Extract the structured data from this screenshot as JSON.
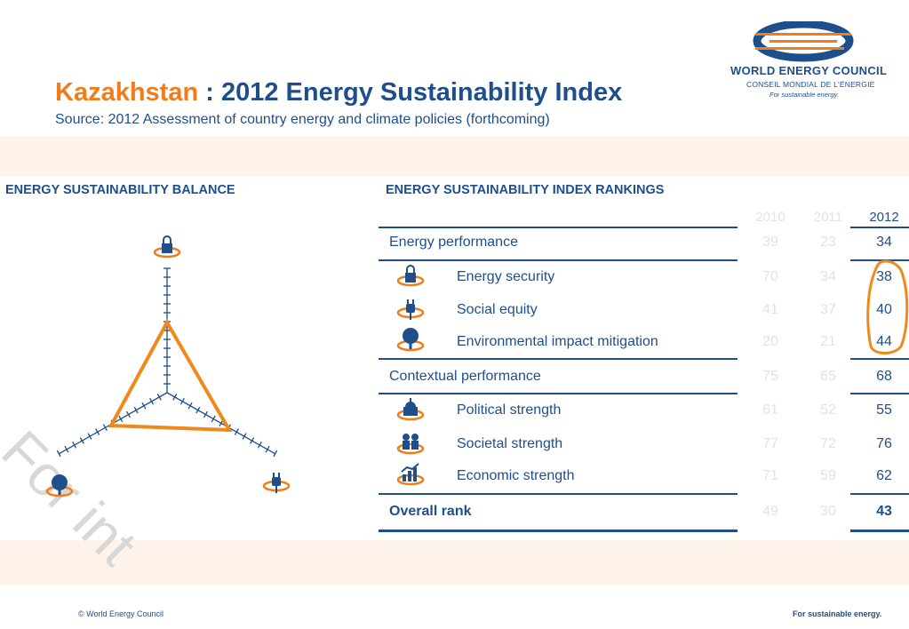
{
  "logo": {
    "title": "WORLD ENERGY COUNCIL",
    "subtitle": "CONSEIL MONDIAL DE L'ÉNERGIE",
    "tagline": "For sustainable energy."
  },
  "header": {
    "country": "Kazakhstan",
    "title": " : 2012 Energy Sustainability Index",
    "source": "Source: 2012 Assessment of country energy and climate policies (forthcoming)"
  },
  "balance": {
    "title": "ENERGY SUSTAINABILITY BALANCE",
    "axes": [
      "security-icon",
      "social-equity-icon",
      "environment-icon"
    ],
    "shape_color": "#f0881a"
  },
  "rankings": {
    "title": "ENERGY SUSTAINABILITY INDEX RANKINGS",
    "years": [
      "2010",
      "2011",
      "2012"
    ],
    "rows": [
      {
        "label": "Energy performance",
        "values": [
          "39",
          "23",
          "34"
        ]
      },
      {
        "label": "Energy security",
        "values": [
          "70",
          "34",
          "38"
        ],
        "icon": "lock-icon"
      },
      {
        "label": "Social equity",
        "values": [
          "41",
          "37",
          "40"
        ],
        "icon": "plug-icon"
      },
      {
        "label": "Environmental impact mitigation",
        "values": [
          "20",
          "21",
          "44"
        ],
        "icon": "tree-icon"
      },
      {
        "label": "Contextual performance",
        "values": [
          "75",
          "65",
          "68"
        ]
      },
      {
        "label": "Political strength",
        "values": [
          "61",
          "52",
          "55"
        ],
        "icon": "capitol-icon"
      },
      {
        "label": "Societal strength",
        "values": [
          "77",
          "72",
          "76"
        ],
        "icon": "people-icon"
      },
      {
        "label": "Economic strength",
        "values": [
          "71",
          "59",
          "62"
        ],
        "icon": "growth-chart-icon"
      },
      {
        "label": "Overall rank",
        "values": [
          "49",
          "30",
          "43"
        ]
      }
    ]
  },
  "watermark": "For int",
  "footer": {
    "copyright": "© World Energy Council",
    "tagline": "For sustainable energy."
  },
  "colors": {
    "brand_blue": "#1e4f8c",
    "accent_orange": "#f07d1a",
    "band": "#fdf3ea"
  }
}
